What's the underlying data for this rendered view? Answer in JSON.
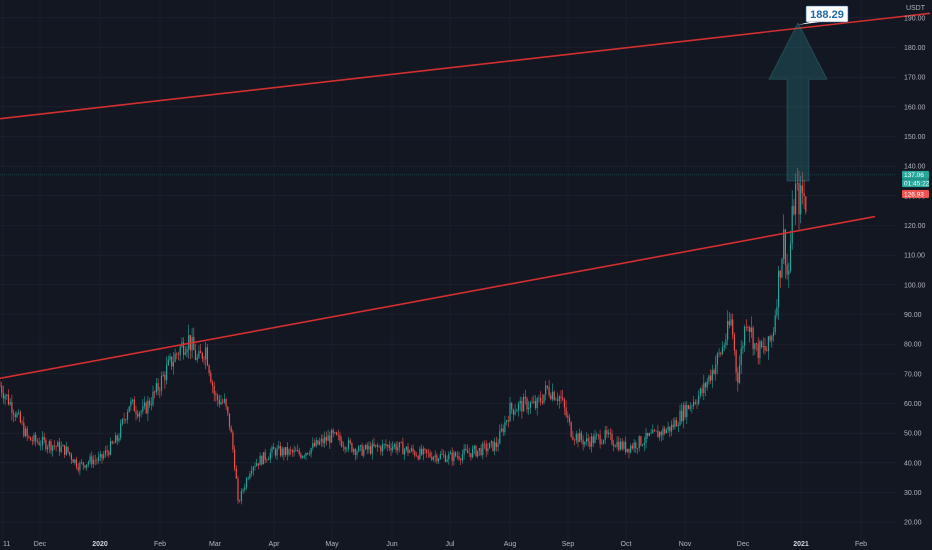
{
  "chart_data": {
    "type": "candlestick",
    "title": "",
    "currency_label": "USDT",
    "ylim": [
      14,
      196
    ],
    "y_ticks": [
      "20.00",
      "30.00",
      "40.00",
      "50.00",
      "60.00",
      "70.00",
      "80.00",
      "90.00",
      "100.00",
      "110.00",
      "120.00",
      "130.00",
      "140.00",
      "150.00",
      "160.00",
      "170.00",
      "180.00",
      "190.00"
    ],
    "x_ticks": [
      "11",
      "Dec",
      "2020",
      "Feb",
      "Mar",
      "Apr",
      "May",
      "Jun",
      "Jul",
      "Aug",
      "Sep",
      "Oct",
      "Nov",
      "Dec",
      "2021",
      "Feb"
    ],
    "bold_x_ticks": [
      "2020",
      "2021"
    ],
    "grid": true,
    "colors": {
      "up": "#26a69a",
      "down": "#ef5350",
      "trendline": "#d32f2f",
      "background": "#131722"
    },
    "price_path": [
      {
        "date": "Nov 11",
        "price": 66
      },
      {
        "date": "Nov 18",
        "price": 58
      },
      {
        "date": "Nov 25",
        "price": 48
      },
      {
        "date": "Dec 1",
        "price": 47
      },
      {
        "date": "Dec 8",
        "price": 46
      },
      {
        "date": "Dec 15",
        "price": 44
      },
      {
        "date": "Dec 21",
        "price": 39
      },
      {
        "date": "Dec 28",
        "price": 41
      },
      {
        "date": "2020",
        "price": 41
      },
      {
        "date": "Jan 10",
        "price": 48
      },
      {
        "date": "Jan 16",
        "price": 60
      },
      {
        "date": "Jan 23",
        "price": 57
      },
      {
        "date": "Jan 30",
        "price": 64
      },
      {
        "date": "Feb 5",
        "price": 72
      },
      {
        "date": "Feb 12",
        "price": 79
      },
      {
        "date": "Feb 16",
        "price": 82
      },
      {
        "date": "Feb 21",
        "price": 74
      },
      {
        "date": "Feb 25",
        "price": 79
      },
      {
        "date": "Mar 1",
        "price": 62
      },
      {
        "date": "Mar 6",
        "price": 60
      },
      {
        "date": "Mar 9",
        "price": 52
      },
      {
        "date": "Mar 12",
        "price": 36
      },
      {
        "date": "Mar 13",
        "price": 26
      },
      {
        "date": "Mar 20",
        "price": 39
      },
      {
        "date": "Apr 1",
        "price": 44
      },
      {
        "date": "Apr 15",
        "price": 43
      },
      {
        "date": "May 1",
        "price": 49
      },
      {
        "date": "May 15",
        "price": 44
      },
      {
        "date": "Jun 1",
        "price": 46
      },
      {
        "date": "Jun 15",
        "price": 43
      },
      {
        "date": "Jul 1",
        "price": 42
      },
      {
        "date": "Jul 15",
        "price": 44
      },
      {
        "date": "Jul 25",
        "price": 46
      },
      {
        "date": "Aug 1",
        "price": 58
      },
      {
        "date": "Aug 10",
        "price": 60
      },
      {
        "date": "Aug 15",
        "price": 59
      },
      {
        "date": "Aug 21",
        "price": 65
      },
      {
        "date": "Aug 28",
        "price": 62
      },
      {
        "date": "Sep 3",
        "price": 50
      },
      {
        "date": "Sep 10",
        "price": 47
      },
      {
        "date": "Sep 20",
        "price": 49
      },
      {
        "date": "Oct 1",
        "price": 45
      },
      {
        "date": "Oct 15",
        "price": 49
      },
      {
        "date": "Oct 25",
        "price": 52
      },
      {
        "date": "Nov 1",
        "price": 58
      },
      {
        "date": "Nov 10",
        "price": 64
      },
      {
        "date": "Nov 20",
        "price": 78
      },
      {
        "date": "Nov 25",
        "price": 88
      },
      {
        "date": "Nov 28",
        "price": 68
      },
      {
        "date": "Dec 3",
        "price": 90
      },
      {
        "date": "Dec 8",
        "price": 78
      },
      {
        "date": "Dec 14",
        "price": 78
      },
      {
        "date": "Dec 17",
        "price": 84
      },
      {
        "date": "Dec 20",
        "price": 102
      },
      {
        "date": "Dec 23",
        "price": 117
      },
      {
        "date": "Dec 25",
        "price": 100
      },
      {
        "date": "Dec 27",
        "price": 120
      },
      {
        "date": "Dec 29",
        "price": 132
      },
      {
        "date": "Dec 31",
        "price": 128
      },
      {
        "date": "Jan 2",
        "price": 131
      },
      {
        "date": "Jan 4",
        "price": 126
      }
    ],
    "trendlines": [
      {
        "start": {
          "date": "Nov 11",
          "price": 156
        },
        "end": {
          "date": "Feb 15",
          "price": 191.5
        }
      },
      {
        "start": {
          "date": "Nov 11",
          "price": 68.5
        },
        "end": {
          "date": "Jan 26",
          "price": 123
        }
      }
    ],
    "projection": {
      "from_date": "Jan 1",
      "from_price": 135,
      "target_price": 188.29,
      "label": "188.29"
    },
    "price_tags": [
      {
        "label": "137.06",
        "price": 137.06,
        "color": "#26a69a"
      },
      {
        "label": "01:45:22",
        "price": 134.3,
        "color": "#26a69a"
      },
      {
        "label": "126.93",
        "price": 130.6,
        "color": "#ef5350"
      }
    ],
    "current_price": 137.06
  }
}
